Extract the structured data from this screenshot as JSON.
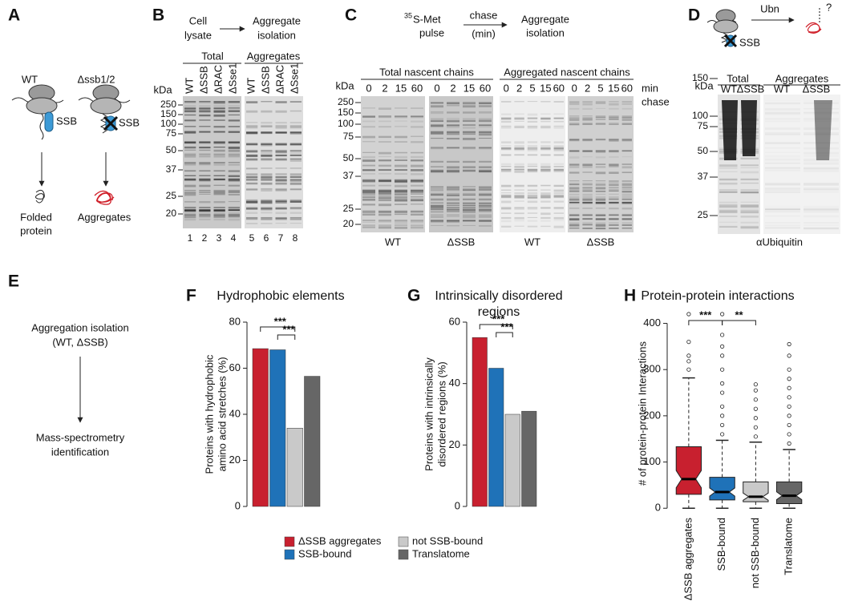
{
  "panels": {
    "A": {
      "label": "A",
      "wt": "WT",
      "mutant": "Δssb1/2",
      "chaperone": "SSB",
      "chaperone_mutant": "SSB",
      "folded": [
        "Folded",
        "protein"
      ],
      "aggregates": "Aggregates"
    },
    "B": {
      "label": "B",
      "step1": [
        "Cell",
        "lysate"
      ],
      "step2": [
        "Aggregate",
        "isolation"
      ],
      "group_total": "Total",
      "group_aggregates": "Aggregates",
      "unit": "kDa",
      "lanes": [
        "WT",
        "ΔSSB",
        "ΔRAC",
        "ΔSse1",
        "WT",
        "ΔSSB",
        "ΔRAC",
        "ΔSse1"
      ],
      "markers": [
        250,
        150,
        100,
        75,
        50,
        37,
        25,
        20
      ],
      "lane_numbers": [
        1,
        2,
        3,
        4,
        5,
        6,
        7,
        8
      ]
    },
    "C": {
      "label": "C",
      "isotope": "35",
      "pulse": [
        "S-Met",
        "pulse"
      ],
      "chase": [
        "chase",
        "(min)"
      ],
      "step2": [
        "Aggregate",
        "isolation"
      ],
      "group_total": "Total nascent chains",
      "group_aggregates": "Aggregated nascent chains",
      "unit": "kDa",
      "time_unit": [
        "min",
        "chase"
      ],
      "timepoints": [
        [
          0,
          2,
          15,
          60
        ],
        [
          0,
          2,
          15,
          60
        ],
        [
          0,
          2,
          5,
          15,
          60
        ],
        [
          0,
          2,
          5,
          15,
          60
        ]
      ],
      "markers": [
        250,
        150,
        100,
        75,
        50,
        37,
        25,
        20
      ],
      "strains": [
        "WT",
        "ΔSSB",
        "WT",
        "ΔSSB"
      ]
    },
    "D": {
      "label": "D",
      "modification": "Ubn",
      "question": "?",
      "chaperone": "SSB",
      "group_total": "Total",
      "group_aggregates": "Aggregates",
      "unit": "kDa",
      "lanes": [
        "WT",
        "ΔSSB",
        "WT",
        "ΔSSB"
      ],
      "markers": [
        150,
        100,
        75,
        50,
        37,
        25
      ],
      "antibody": "αUbiquitin"
    },
    "E": {
      "label": "E",
      "step1": [
        "Aggregation isolation",
        "(WT, ΔSSB)"
      ],
      "step2": [
        "Mass-spectrometry",
        "identification"
      ]
    },
    "F": {
      "label": "F"
    },
    "G": {
      "label": "G"
    },
    "H": {
      "label": "H"
    }
  },
  "legend": {
    "entries": [
      {
        "name": "ΔSSB aggregates",
        "color": "#c8202f"
      },
      {
        "name": "SSB-bound",
        "color": "#1f72b8"
      },
      {
        "name": "not SSB-bound",
        "color": "#c9c9c9"
      },
      {
        "name": "Translatome",
        "color": "#666666"
      }
    ]
  },
  "chart_data": [
    {
      "type": "bar",
      "title": "Hydrophobic elements",
      "y_label": [
        "Proteins with hydrophobic",
        "amino acid stretches (%)"
      ],
      "categories": [
        null,
        null,
        null,
        null
      ],
      "values": [
        68.5,
        68,
        34,
        56.5
      ],
      "colors": [
        "#c8202f",
        "#1f72b8",
        "#c9c9c9",
        "#666666"
      ],
      "ylim": [
        0,
        80
      ],
      "yticks": [
        0,
        20,
        40,
        60,
        80
      ],
      "annotations": [
        "***",
        "***"
      ]
    },
    {
      "type": "bar",
      "title": [
        "Intrinsically disordered",
        "regions"
      ],
      "y_label": [
        "Proteins with intrinsically",
        "disordered regions (%)"
      ],
      "categories": [
        null,
        null,
        null,
        null
      ],
      "values": [
        55,
        45,
        30,
        31
      ],
      "colors": [
        "#c8202f",
        "#1f72b8",
        "#c9c9c9",
        "#666666"
      ],
      "ylim": [
        0,
        60
      ],
      "yticks": [
        0,
        20,
        40,
        60
      ],
      "annotations": [
        "***",
        "***"
      ]
    },
    {
      "type": "box",
      "title": "Protein-protein interactions",
      "y_label": "# of protein-protein Interactions",
      "categories": [
        "ΔSSB aggregates",
        "SSB-bound",
        "not SSB-bound",
        "Translatome"
      ],
      "series": [
        {
          "name": "ΔSSB aggregates",
          "color": "#c8202f",
          "whisker_low": 0,
          "q1": 30,
          "median": 63,
          "q3": 133,
          "whisker_high": 282,
          "outliers": [
            300,
            318,
            330,
            360,
            420
          ]
        },
        {
          "name": "SSB-bound",
          "color": "#1f72b8",
          "whisker_low": 0,
          "q1": 18,
          "median": 35,
          "q3": 67,
          "whisker_high": 147,
          "outliers": [
            160,
            180,
            200,
            220,
            250,
            270,
            300,
            330,
            350,
            375,
            420
          ]
        },
        {
          "name": "not SSB-bound",
          "color": "#c9c9c9",
          "whisker_low": 0,
          "q1": 14,
          "median": 25,
          "q3": 57,
          "whisker_high": 143,
          "outliers": [
            155,
            175,
            195,
            215,
            235,
            255,
            268
          ]
        },
        {
          "name": "Translatome",
          "color": "#666666",
          "whisker_low": 0,
          "q1": 10,
          "median": 27,
          "q3": 57,
          "whisker_high": 127,
          "outliers": [
            140,
            160,
            180,
            200,
            220,
            240,
            260,
            280,
            300,
            330,
            355
          ]
        }
      ],
      "ylim": [
        -10,
        420
      ],
      "yticks": [
        0,
        100,
        200,
        300,
        400
      ],
      "annotations": [
        "***",
        "**"
      ]
    }
  ]
}
